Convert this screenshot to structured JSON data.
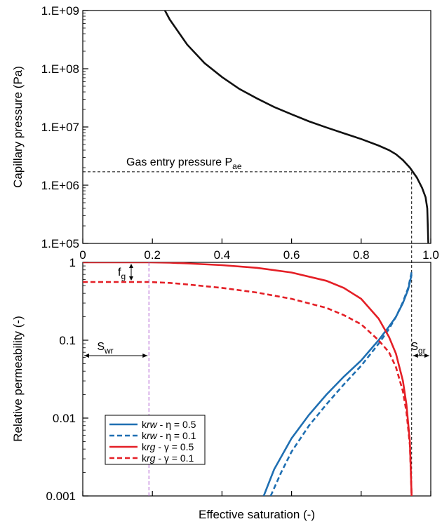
{
  "chart_data": [
    {
      "type": "line",
      "panel": "top",
      "ylabel": "Capillary pressure  (Pa)",
      "yscale": "log",
      "ylim": [
        100000,
        1000000000
      ],
      "xlim": [
        0,
        1
      ],
      "xticks": [
        "0",
        "0.2",
        "0.4",
        "0.6",
        "0.8",
        "1.0"
      ],
      "yticks": [
        "1.E+05",
        "1.E+06",
        "1.E+07",
        "1.E+08",
        "1.E+09"
      ],
      "series": [
        {
          "color": "#111111",
          "style": "solid",
          "x": [
            0.236,
            0.25,
            0.3,
            0.35,
            0.4,
            0.45,
            0.5,
            0.55,
            0.6,
            0.65,
            0.7,
            0.75,
            0.8,
            0.85,
            0.88,
            0.9,
            0.92,
            0.94,
            0.96,
            0.975,
            0.985,
            0.99,
            0.993
          ],
          "y": [
            1000000000,
            700000000,
            260000000,
            125000000,
            72000000,
            45000000,
            31000000,
            22000000,
            16500000,
            12500000,
            9800000,
            7800000,
            6200000,
            4800000,
            4000000,
            3400000,
            2700000,
            2000000,
            1350000,
            900000,
            620000,
            400000,
            100000
          ]
        }
      ],
      "annotations": {
        "gas_entry": "Gas entry pressure P",
        "gas_entry_sub": "ae",
        "entry_pressure_value": 1700000,
        "entry_saturation": 0.945
      }
    },
    {
      "type": "line",
      "panel": "bottom",
      "xlabel": "Effective saturation (-)",
      "ylabel": "Relative permeability (-)",
      "yscale": "log",
      "ylim": [
        0.001,
        1
      ],
      "xlim": [
        0,
        1
      ],
      "yticks": [
        "0.001",
        "0.01",
        "0.1",
        "1"
      ],
      "series": [
        {
          "name_main": "k",
          "name_sub": "rw",
          "name_rest": " - η = 0.5",
          "color": "#1f6fb2",
          "style": "solid",
          "x": [
            0.52,
            0.55,
            0.6,
            0.65,
            0.7,
            0.75,
            0.8,
            0.85,
            0.88,
            0.9,
            0.92,
            0.935,
            0.945
          ],
          "y": [
            0.001,
            0.0022,
            0.0055,
            0.011,
            0.02,
            0.034,
            0.055,
            0.1,
            0.15,
            0.2,
            0.3,
            0.45,
            0.7
          ]
        },
        {
          "name_main": "k",
          "name_sub": "rw",
          "name_rest": " - η = 0.1",
          "color": "#1f6fb2",
          "style": "dashed",
          "x": [
            0.54,
            0.57,
            0.6,
            0.65,
            0.7,
            0.75,
            0.8,
            0.85,
            0.88,
            0.9,
            0.92,
            0.935,
            0.945
          ],
          "y": [
            0.001,
            0.002,
            0.0037,
            0.008,
            0.015,
            0.027,
            0.047,
            0.09,
            0.14,
            0.2,
            0.31,
            0.47,
            0.75
          ]
        },
        {
          "name_main": "k",
          "name_sub": "rg",
          "name_rest": " - γ = 0.5",
          "color": "#e41f26",
          "style": "solid",
          "x": [
            0.0,
            0.19,
            0.25,
            0.3,
            0.4,
            0.5,
            0.6,
            0.7,
            0.75,
            0.8,
            0.85,
            0.88,
            0.9,
            0.92,
            0.93,
            0.94,
            0.945
          ],
          "y": [
            1.0,
            1.0,
            0.99,
            0.97,
            0.92,
            0.85,
            0.74,
            0.58,
            0.47,
            0.34,
            0.19,
            0.11,
            0.067,
            0.03,
            0.015,
            0.005,
            0.001
          ]
        },
        {
          "name_main": "k",
          "name_sub": "rg",
          "name_rest": " - γ = 0.1",
          "color": "#e41f26",
          "style": "dashed",
          "x": [
            0.0,
            0.19,
            0.25,
            0.3,
            0.4,
            0.5,
            0.6,
            0.7,
            0.75,
            0.8,
            0.85,
            0.88,
            0.9,
            0.92,
            0.93,
            0.94,
            0.945
          ],
          "y": [
            0.56,
            0.56,
            0.545,
            0.52,
            0.47,
            0.41,
            0.34,
            0.26,
            0.21,
            0.16,
            0.1,
            0.07,
            0.045,
            0.022,
            0.012,
            0.0045,
            0.001
          ]
        }
      ],
      "annotations": {
        "swr": "S",
        "swr_sub": "wr",
        "sgr": "S",
        "sgr_sub": "gr",
        "fg": "f",
        "fg_sub": "g",
        "swr_value": 0.19,
        "sgr_value": 0.945
      }
    }
  ]
}
